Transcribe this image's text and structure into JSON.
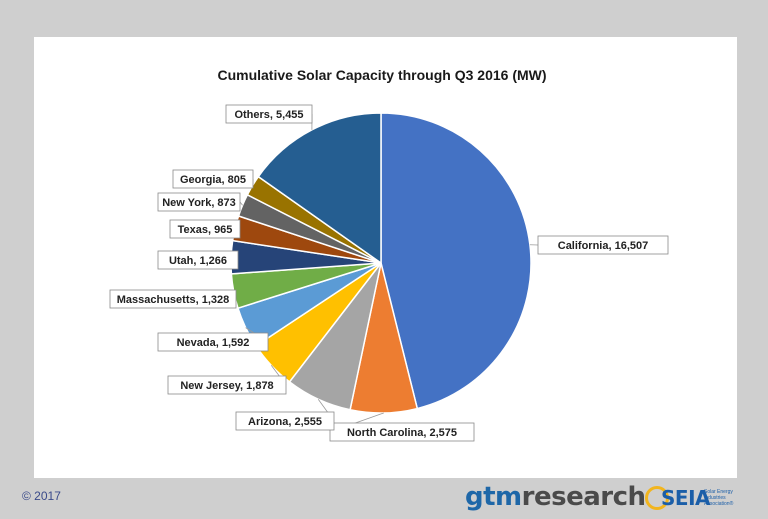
{
  "chart_data": {
    "type": "pie",
    "title": "Cumulative Solar Capacity through Q3 2016 (MW)",
    "slices": [
      {
        "label": "California, 16,507",
        "name": "California",
        "value": 16507,
        "color": "#4472c4"
      },
      {
        "label": "North Carolina, 2,575",
        "name": "North Carolina",
        "value": 2575,
        "color": "#ed7d31"
      },
      {
        "label": "Arizona, 2,555",
        "name": "Arizona",
        "value": 2555,
        "color": "#a5a5a5"
      },
      {
        "label": "New Jersey, 1,878",
        "name": "New Jersey",
        "value": 1878,
        "color": "#ffc000"
      },
      {
        "label": "Nevada, 1,592",
        "name": "Nevada",
        "value": 1592,
        "color": "#5b9bd5"
      },
      {
        "label": "Massachusetts, 1,328",
        "name": "Massachusetts",
        "value": 1328,
        "color": "#70ad47"
      },
      {
        "label": "Utah, 1,266",
        "name": "Utah",
        "value": 1266,
        "color": "#264478"
      },
      {
        "label": "Texas, 965",
        "name": "Texas",
        "value": 965,
        "color": "#9e480e"
      },
      {
        "label": "New York, 873",
        "name": "New York",
        "value": 873,
        "color": "#636363"
      },
      {
        "label": "Georgia, 805",
        "name": "Georgia",
        "value": 805,
        "color": "#997300"
      },
      {
        "label": "Others, 5,455",
        "name": "Others",
        "value": 5455,
        "color": "#255e91"
      }
    ]
  },
  "footer": {
    "copyright": "© 2017",
    "logo_gtm_a": "gtm",
    "logo_gtm_b": "research",
    "logo_seia": "SEIA",
    "logo_seia_sub": "Solar Energy Industries Association®"
  }
}
